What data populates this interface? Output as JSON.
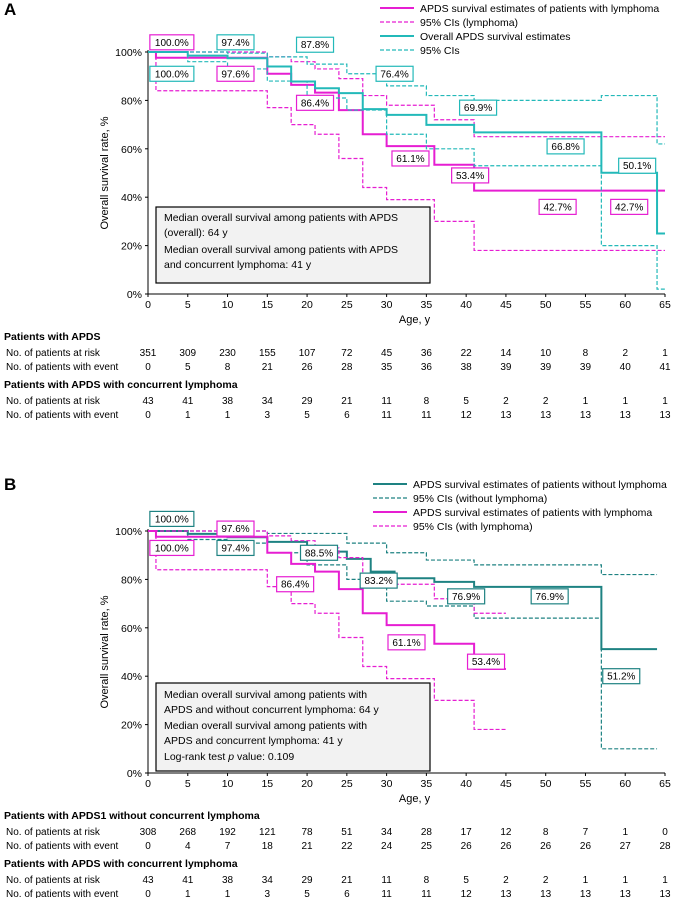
{
  "chart_data": [
    {
      "panel": "A",
      "type": "line",
      "xlabel": "Age, y",
      "ylabel": "Overall survival rate, %",
      "xlim": [
        0,
        65
      ],
      "ylim": [
        0,
        100
      ],
      "xticks": [
        0,
        5,
        10,
        15,
        20,
        25,
        30,
        35,
        40,
        45,
        50,
        55,
        60,
        65
      ],
      "yticks": [
        "0%",
        "20%",
        "40%",
        "60%",
        "80%",
        "100%"
      ],
      "legend": [
        "APDS survival estimates of patients with lymphoma",
        "95% CIs (lymphoma)",
        "Overall APDS survival estimates",
        "95% CIs"
      ],
      "series": [
        {
          "name": "APDS survival estimates of patients with lymphoma",
          "color": "#e61ed2",
          "style": "solid",
          "x": [
            0,
            1,
            9,
            15,
            18,
            21,
            24,
            27,
            30,
            36,
            41,
            65
          ],
          "y": [
            100,
            97.6,
            97.6,
            91,
            86.4,
            83.2,
            76,
            66,
            61.1,
            53.4,
            42.7,
            42.7
          ]
        },
        {
          "name": "95% CIs (lymphoma) upper",
          "color": "#e61ed2",
          "style": "dashed",
          "x": [
            0,
            9,
            15,
            18,
            21,
            24,
            27,
            30,
            36,
            41,
            65
          ],
          "y": [
            100,
            100,
            98,
            96,
            93,
            89,
            82,
            78,
            72,
            65,
            65
          ]
        },
        {
          "name": "95% CIs (lymphoma) lower",
          "color": "#e61ed2",
          "style": "dashed",
          "x": [
            0,
            1,
            9,
            15,
            18,
            21,
            24,
            27,
            30,
            36,
            41,
            65
          ],
          "y": [
            100,
            84,
            84,
            77,
            70,
            66,
            56,
            44,
            39,
            30,
            18,
            18
          ]
        },
        {
          "name": "Overall APDS survival estimates",
          "color": "#23b9b9",
          "style": "solid",
          "x": [
            0,
            5,
            10,
            15,
            18,
            21,
            24,
            27,
            30,
            35,
            41,
            57,
            64,
            65
          ],
          "y": [
            100,
            98.5,
            97.4,
            94,
            87.8,
            85,
            83,
            76.4,
            74,
            69.9,
            66.8,
            50.1,
            25,
            25
          ]
        },
        {
          "name": "95% CIs upper",
          "color": "#23b9b9",
          "style": "dashed",
          "x": [
            0,
            10,
            15,
            20,
            25,
            30,
            35,
            41,
            57,
            64,
            65
          ],
          "y": [
            100,
            99.5,
            98,
            95,
            91,
            86,
            82,
            80,
            82,
            62,
            62
          ]
        },
        {
          "name": "95% CIs lower",
          "color": "#23b9b9",
          "style": "dashed",
          "x": [
            0,
            5,
            10,
            15,
            20,
            25,
            30,
            35,
            41,
            57,
            64,
            65
          ],
          "y": [
            100,
            96,
            93,
            88,
            81,
            76,
            66,
            60,
            53,
            20,
            2,
            2
          ]
        }
      ],
      "annotations": [
        {
          "text": "100.0%",
          "color": "#e61ed2",
          "at": [
            3,
            104
          ]
        },
        {
          "text": "97.4%",
          "color": "#23b9b9",
          "at": [
            11,
            104
          ]
        },
        {
          "text": "87.8%",
          "color": "#23b9b9",
          "at": [
            21,
            103
          ]
        },
        {
          "text": "100.0%",
          "color": "#23b9b9",
          "at": [
            3,
            91
          ]
        },
        {
          "text": "97.6%",
          "color": "#e61ed2",
          "at": [
            11,
            91
          ]
        },
        {
          "text": "76.4%",
          "color": "#23b9b9",
          "at": [
            31,
            91
          ]
        },
        {
          "text": "86.4%",
          "color": "#e61ed2",
          "at": [
            21,
            79
          ]
        },
        {
          "text": "69.9%",
          "color": "#23b9b9",
          "at": [
            41.5,
            77
          ]
        },
        {
          "text": "66.8%",
          "color": "#23b9b9",
          "at": [
            52.5,
            61
          ]
        },
        {
          "text": "61.1%",
          "color": "#e61ed2",
          "at": [
            33,
            56
          ]
        },
        {
          "text": "53.4%",
          "color": "#e61ed2",
          "at": [
            40.5,
            49
          ]
        },
        {
          "text": "50.1%",
          "color": "#23b9b9",
          "at": [
            61.5,
            53
          ]
        },
        {
          "text": "42.7%",
          "color": "#e61ed2",
          "at": [
            51.5,
            36
          ]
        },
        {
          "text": "42.7%",
          "color": "#e61ed2",
          "at": [
            60.5,
            36
          ]
        }
      ],
      "median_box": [
        "Median overall survival among patients with APDS",
        "(overall): 64 y",
        "Median overall survival among patients with APDS",
        "and concurrent lymphoma: 41 y"
      ]
    },
    {
      "panel": "B",
      "type": "line",
      "xlabel": "Age, y",
      "ylabel": "Overall survival rate, %",
      "xlim": [
        0,
        65
      ],
      "ylim": [
        0,
        100
      ],
      "xticks": [
        0,
        5,
        10,
        15,
        20,
        25,
        30,
        35,
        40,
        45,
        50,
        55,
        60,
        65
      ],
      "yticks": [
        "0%",
        "20%",
        "40%",
        "60%",
        "80%",
        "100%"
      ],
      "legend": [
        "APDS survival estimates of patients without lymphoma",
        "95% CIs (without lymphoma)",
        "APDS survival estimates of patients with lymphoma",
        "95% CIs (with lymphoma)"
      ],
      "series": [
        {
          "name": "APDS survival estimates of patients without lymphoma",
          "color": "#1e8282",
          "style": "solid",
          "x": [
            0,
            5,
            10,
            15,
            20,
            25,
            28,
            31,
            36,
            41,
            57,
            64
          ],
          "y": [
            100,
            98.8,
            97.4,
            95.5,
            91.5,
            88.5,
            83.2,
            80.5,
            79,
            76.9,
            51.2,
            51.2
          ]
        },
        {
          "name": "95% CIs (without lymphoma) upper",
          "color": "#1e8282",
          "style": "dashed",
          "x": [
            0,
            15,
            25,
            30,
            35,
            41,
            57,
            64
          ],
          "y": [
            100,
            99,
            95,
            91,
            88,
            86,
            82,
            82
          ]
        },
        {
          "name": "95% CIs (without lymphoma) lower",
          "color": "#1e8282",
          "style": "dashed",
          "x": [
            0,
            5,
            10,
            15,
            20,
            25,
            30,
            35,
            41,
            57,
            64
          ],
          "y": [
            100,
            96.5,
            95,
            91,
            86,
            80,
            71,
            69,
            64,
            10,
            10
          ]
        },
        {
          "name": "APDS survival estimates of patients with lymphoma",
          "color": "#e61ed2",
          "style": "solid",
          "x": [
            0,
            1,
            9,
            15,
            18,
            21,
            24,
            27,
            30,
            36,
            41,
            45
          ],
          "y": [
            100,
            97.6,
            97.6,
            91,
            86.4,
            83.2,
            76,
            66,
            61.1,
            53.4,
            43,
            43
          ]
        },
        {
          "name": "95% CIs (with lymphoma) upper",
          "color": "#e61ed2",
          "style": "dashed",
          "x": [
            0,
            9,
            15,
            18,
            21,
            24,
            27,
            30,
            36,
            41,
            45
          ],
          "y": [
            100,
            100,
            98,
            96,
            93,
            89,
            82,
            78,
            72,
            66,
            66
          ]
        },
        {
          "name": "95% CIs (with lymphoma) lower",
          "color": "#e61ed2",
          "style": "dashed",
          "x": [
            0,
            1,
            9,
            15,
            18,
            21,
            24,
            27,
            30,
            36,
            41,
            45
          ],
          "y": [
            100,
            84,
            84,
            77,
            70,
            66,
            56,
            44,
            39,
            30,
            18,
            18
          ]
        }
      ],
      "annotations": [
        {
          "text": "100.0%",
          "color": "#1e8282",
          "at": [
            3,
            105
          ]
        },
        {
          "text": "97.6%",
          "color": "#e61ed2",
          "at": [
            11,
            101
          ]
        },
        {
          "text": "100.0%",
          "color": "#e61ed2",
          "at": [
            3,
            93
          ]
        },
        {
          "text": "97.4%",
          "color": "#1e8282",
          "at": [
            11,
            93
          ]
        },
        {
          "text": "88.5%",
          "color": "#1e8282",
          "at": [
            21.5,
            91
          ]
        },
        {
          "text": "86.4%",
          "color": "#e61ed2",
          "at": [
            18.5,
            78
          ]
        },
        {
          "text": "83.2%",
          "color": "#1e8282",
          "at": [
            29,
            79.5
          ]
        },
        {
          "text": "76.9%",
          "color": "#1e8282",
          "at": [
            40,
            73
          ]
        },
        {
          "text": "76.9%",
          "color": "#1e8282",
          "at": [
            50.5,
            73
          ]
        },
        {
          "text": "61.1%",
          "color": "#e61ed2",
          "at": [
            32.5,
            54
          ]
        },
        {
          "text": "53.4%",
          "color": "#e61ed2",
          "at": [
            42.5,
            46
          ]
        },
        {
          "text": "51.2%",
          "color": "#1e8282",
          "at": [
            59.5,
            40
          ]
        }
      ],
      "median_box": [
        "Median overall survival among patients with",
        "APDS and without concurrent lymphoma: 64 y",
        "Median overall survival among patients with",
        "APDS and concurrent lymphoma: 41 y",
        "Log-rank test p value: 0.109"
      ]
    }
  ],
  "risk_tables": {
    "A": [
      {
        "title": "Patients with APDS",
        "rows": [
          {
            "label": "No. of patients at risk",
            "values": [
              "351",
              "309",
              "230",
              "155",
              "107",
              "72",
              "45",
              "36",
              "22",
              "14",
              "10",
              "8",
              "2",
              "1"
            ]
          },
          {
            "label": "No. of patients with event",
            "values": [
              "0",
              "5",
              "8",
              "21",
              "26",
              "28",
              "35",
              "36",
              "38",
              "39",
              "39",
              "39",
              "40",
              "41"
            ]
          }
        ]
      },
      {
        "title": "Patients with APDS with concurrent lymphoma",
        "rows": [
          {
            "label": "No. of patients at risk",
            "values": [
              "43",
              "41",
              "38",
              "34",
              "29",
              "21",
              "11",
              "8",
              "5",
              "2",
              "2",
              "1",
              "1",
              "1"
            ]
          },
          {
            "label": "No. of patients with event",
            "values": [
              "0",
              "1",
              "1",
              "3",
              "5",
              "6",
              "11",
              "11",
              "12",
              "13",
              "13",
              "13",
              "13",
              "13"
            ]
          }
        ]
      }
    ],
    "B": [
      {
        "title": "Patients with APDS1 without concurrent lymphoma",
        "rows": [
          {
            "label": "No. of patients at risk",
            "values": [
              "308",
              "268",
              "192",
              "121",
              "78",
              "51",
              "34",
              "28",
              "17",
              "12",
              "8",
              "7",
              "1",
              "0"
            ]
          },
          {
            "label": "No. of patients with event",
            "values": [
              "0",
              "4",
              "7",
              "18",
              "21",
              "22",
              "24",
              "25",
              "26",
              "26",
              "26",
              "26",
              "27",
              "28"
            ]
          }
        ]
      },
      {
        "title": "Patients with APDS with concurrent lymphoma",
        "rows": [
          {
            "label": "No. of patients at risk",
            "values": [
              "43",
              "41",
              "38",
              "34",
              "29",
              "21",
              "11",
              "8",
              "5",
              "2",
              "2",
              "1",
              "1",
              "1"
            ]
          },
          {
            "label": "No. of patients with event",
            "values": [
              "0",
              "1",
              "1",
              "3",
              "5",
              "6",
              "11",
              "11",
              "12",
              "13",
              "13",
              "13",
              "13",
              "13"
            ]
          }
        ]
      }
    ]
  }
}
